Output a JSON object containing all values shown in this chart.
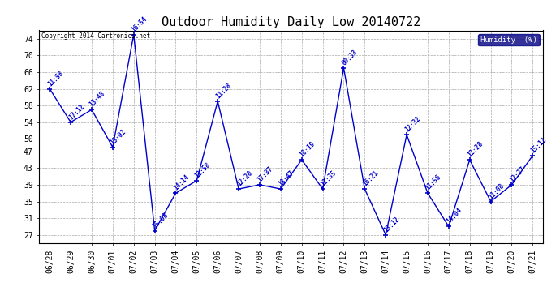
{
  "title": "Outdoor Humidity Daily Low 20140722",
  "copyright_text": "Copyright 2014 Cartronics.net",
  "legend_label": "Humidity  (%)",
  "x_labels": [
    "06/28",
    "06/29",
    "06/30",
    "07/01",
    "07/02",
    "07/03",
    "07/04",
    "07/05",
    "07/06",
    "07/07",
    "07/08",
    "07/09",
    "07/10",
    "07/11",
    "07/12",
    "07/13",
    "07/14",
    "07/15",
    "07/16",
    "07/17",
    "07/18",
    "07/19",
    "07/20",
    "07/21"
  ],
  "y_values": [
    62,
    54,
    57,
    48,
    75,
    28,
    37,
    40,
    59,
    38,
    39,
    38,
    45,
    38,
    67,
    38,
    27,
    51,
    37,
    29,
    45,
    35,
    39,
    46
  ],
  "point_labels": [
    "11:58",
    "17:12",
    "13:48",
    "15:02",
    "16:54",
    "15:08",
    "14:14",
    "12:58",
    "11:28",
    "12:20",
    "17:37",
    "18:47",
    "18:19",
    "12:35",
    "00:33",
    "16:21",
    "13:12",
    "12:32",
    "11:56",
    "14:04",
    "12:28",
    "11:08",
    "12:27",
    "15:12"
  ],
  "line_color": "#0000cc",
  "marker_color": "#0000cc",
  "background_color": "#ffffff",
  "plot_bg_color": "#ffffff",
  "grid_color": "#aaaaaa",
  "ylim": [
    25,
    76
  ],
  "yticks": [
    27,
    31,
    35,
    39,
    43,
    47,
    50,
    54,
    58,
    62,
    66,
    70,
    74
  ],
  "title_fontsize": 11,
  "tick_fontsize": 7,
  "legend_bg": "#000080",
  "legend_fg": "#ffffff"
}
